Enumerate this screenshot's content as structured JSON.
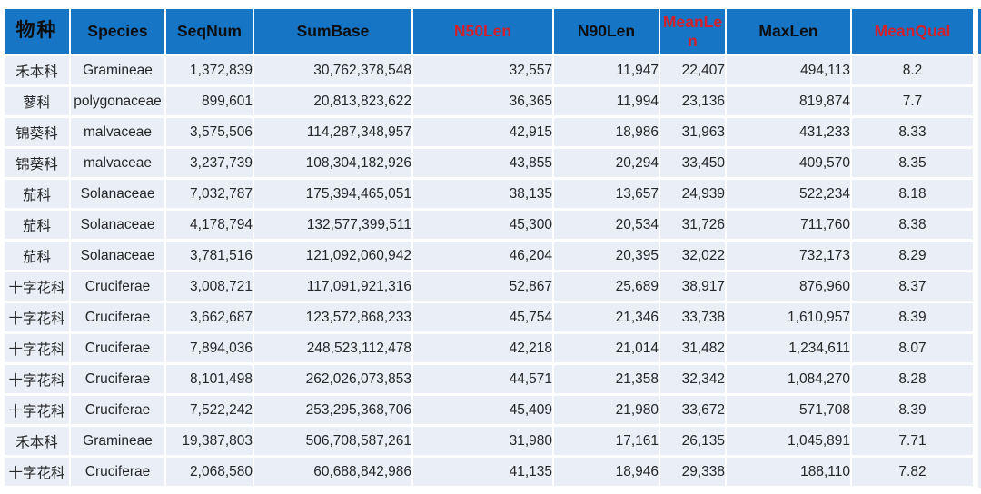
{
  "colors": {
    "header_bg": "#1675C5",
    "row_bg": "#E9EEF7",
    "accent_red": "#D2202C",
    "header_text": "#0d0d0d",
    "body_text": "#262626",
    "page_bg": "#ffffff"
  },
  "table": {
    "columns": [
      {
        "id": "species-cn",
        "label": "物种",
        "red": false
      },
      {
        "id": "species",
        "label": "Species",
        "red": false
      },
      {
        "id": "seqnum",
        "label": "SeqNum",
        "red": false
      },
      {
        "id": "sumbase",
        "label": "SumBase",
        "red": false
      },
      {
        "id": "n50len",
        "label": "N50Len",
        "red": true
      },
      {
        "id": "n90len",
        "label": "N90Len",
        "red": false
      },
      {
        "id": "meanlen",
        "label": "MeanLen",
        "red": true
      },
      {
        "id": "maxlen",
        "label": "MaxLen",
        "red": false
      },
      {
        "id": "meanqual",
        "label": "MeanQual",
        "red": true
      }
    ],
    "rows": [
      [
        "禾本科",
        "Gramineae",
        "1,372,839",
        "30,762,378,548",
        "32,557",
        "11,947",
        "22,407",
        "494,113",
        "8.2"
      ],
      [
        "蓼科",
        "polygonaceae",
        "899,601",
        "20,813,823,622",
        "36,365",
        "11,994",
        "23,136",
        "819,874",
        "7.7"
      ],
      [
        "锦葵科",
        "malvaceae",
        "3,575,506",
        "114,287,348,957",
        "42,915",
        "18,986",
        "31,963",
        "431,233",
        "8.33"
      ],
      [
        "锦葵科",
        "malvaceae",
        "3,237,739",
        "108,304,182,926",
        "43,855",
        "20,294",
        "33,450",
        "409,570",
        "8.35"
      ],
      [
        "茄科",
        "Solanaceae",
        "7,032,787",
        "175,394,465,051",
        "38,135",
        "13,657",
        "24,939",
        "522,234",
        "8.18"
      ],
      [
        "茄科",
        "Solanaceae",
        "4,178,794",
        "132,577,399,511",
        "45,300",
        "20,534",
        "31,726",
        "711,760",
        "8.38"
      ],
      [
        "茄科",
        "Solanaceae",
        "3,781,516",
        "121,092,060,942",
        "46,204",
        "20,395",
        "32,022",
        "732,173",
        "8.29"
      ],
      [
        "十字花科",
        "Cruciferae",
        "3,008,721",
        "117,091,921,316",
        "52,867",
        "25,689",
        "38,917",
        "876,960",
        "8.37"
      ],
      [
        "十字花科",
        "Cruciferae",
        "3,662,687",
        "123,572,868,233",
        "45,754",
        "21,346",
        "33,738",
        "1,610,957",
        "8.39"
      ],
      [
        "十字花科",
        "Cruciferae",
        "7,894,036",
        "248,523,112,478",
        "42,218",
        "21,014",
        "31,482",
        "1,234,611",
        "8.07"
      ],
      [
        "十字花科",
        "Cruciferae",
        "8,101,498",
        "262,026,073,853",
        "44,571",
        "21,358",
        "32,342",
        "1,084,270",
        "8.28"
      ],
      [
        "十字花科",
        "Cruciferae",
        "7,522,242",
        "253,295,368,706",
        "45,409",
        "21,980",
        "33,672",
        "571,708",
        "8.39"
      ],
      [
        "禾本科",
        "Gramineae",
        "19,387,803",
        "506,708,587,261",
        "31,980",
        "17,161",
        "26,135",
        "1,045,891",
        "7.71"
      ],
      [
        "十字花科",
        "Cruciferae",
        "2,068,580",
        "60,688,842,986",
        "41,135",
        "18,946",
        "29,338",
        "188,110",
        "7.82"
      ]
    ]
  }
}
